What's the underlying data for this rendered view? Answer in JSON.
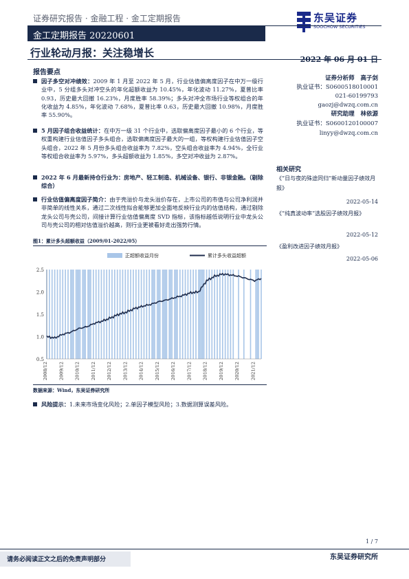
{
  "header": {
    "series": "证券研究报告 · 金融工程 · 金工定期报告",
    "banner": "金工定期报告 20220601",
    "logo_cn": "东吴证券",
    "logo_en": "SOOCHOW SECURITIES",
    "title": "行业轮动月报：关注稳增长",
    "date": "2022 年 06 月 01 日"
  },
  "summary": {
    "heading": "报告要点",
    "bullets": [
      {
        "lead": "因子多空对冲绩效：",
        "text": "2009 年 1 月至 2022 年 5 月，行业估值偏离度因子在中万一级行业中，5 分组多头对冲空头的年化超额收益为 10.45%，年化波动 11.27%，夏普比率 0.93，历史最大回撤 16.23%，月度胜率 58.39%；多头对冲全市场行业等权组合的年化收益为 4.85%，年化波动 7.68%，夏普比率 0.63，历史最大回撤 10.98%，月度胜率 55.90%。"
      },
      {
        "lead": "5 月因子组合收益统计：",
        "text": "在中万一级 31 个行业中，选取偏离度因子最小的 6 个行业，等权重构建行业估值因子多头组合，选取偏离度因子最大的一组，等权构建行业估值因子空头组合，2022 年 5 月份多头组合收益率为 7.82%，空头组合收益率为 4.94%，全行业等权组合收益率为 5.97%，多头超额收益为 1.85%，多空对冲收益为 2.87%。"
      },
      {
        "lead": "2022 年 6 月最新持仓行业为：",
        "text": "房地产、轻工制造、机械设备、银行、非银金融。（剔除综合）",
        "all_bold": true
      },
      {
        "lead": "行业估值偏离度因子简介：",
        "text": "由于壳溢价与龙头溢价存在，上市公司的市值与公司净利润并非简单的线性关系，通过二次线性拟合能够更加全面地反映行业内的估值结构，通过剔除龙头公司与壳公司，间接计算行业估值偏离度 SVD 指标，该指标越低说明行业中龙头公司与壳公司的相对估值溢价越高，则行业更被看好走出强势行情。"
      }
    ],
    "risk_lead": "风险提示：",
    "risk_text": "1.未来市场变化风险；2.单因子模型风险；3.数据测算误差风险。"
  },
  "chart_meta": {
    "caption": "图1：累计多头超额收益（2009/01-2022/05）",
    "source": "数据来源：Wind，东吴证券研究所"
  },
  "chart_data": {
    "type": "bar+line",
    "title": "图1：累计多头超额收益（2009/01-2022/05）",
    "legend": [
      "正超额收益月份",
      "累计多头收益超额"
    ],
    "legend_position": "top",
    "ylim": [
      0.5,
      2.5
    ],
    "yticks": [
      0.5,
      1.0,
      1.5,
      2.0,
      2.5
    ],
    "xtick_labels": [
      "2008/12",
      "2009/12",
      "2010/12",
      "2011/12",
      "2012/12",
      "2013/12",
      "2014/12",
      "2015/12",
      "2016/12",
      "2017/12",
      "2018/12",
      "2019/12",
      "2020/12",
      "2021/12"
    ],
    "bar_color": "#a9c6e8",
    "line_color": "#1f2d4d",
    "line_anchors": [
      [
        "2008/12",
        1.0
      ],
      [
        "2009/06",
        0.97
      ],
      [
        "2009/12",
        1.05
      ],
      [
        "2010/06",
        1.1
      ],
      [
        "2010/12",
        1.18
      ],
      [
        "2011/06",
        1.22
      ],
      [
        "2011/12",
        1.3
      ],
      [
        "2012/06",
        1.35
      ],
      [
        "2012/12",
        1.42
      ],
      [
        "2013/06",
        1.5
      ],
      [
        "2013/12",
        1.55
      ],
      [
        "2014/06",
        1.63
      ],
      [
        "2014/12",
        1.68
      ],
      [
        "2015/06",
        1.72
      ],
      [
        "2015/12",
        1.78
      ],
      [
        "2016/06",
        1.82
      ],
      [
        "2016/12",
        1.87
      ],
      [
        "2017/06",
        1.92
      ],
      [
        "2017/12",
        1.98
      ],
      [
        "2018/06",
        2.0
      ],
      [
        "2018/12",
        2.25
      ],
      [
        "2019/06",
        2.35
      ],
      [
        "2019/12",
        2.4
      ],
      [
        "2020/06",
        2.38
      ],
      [
        "2020/12",
        2.35
      ],
      [
        "2021/06",
        2.3
      ],
      [
        "2021/12",
        2.25
      ],
      [
        "2022/05",
        2.3
      ]
    ]
  },
  "sidebar": {
    "analyst_label": "证券分析师",
    "analyst_name": "高子剑",
    "analyst_license": "执业证书：S0600518010001",
    "analyst_phone": "021-60199793",
    "analyst_email": "gaozj@dwzq.com.cn",
    "assistant_label": "研究助理",
    "assistant_name": "林依源",
    "assistant_license": "执业证书：S0600120100007",
    "assistant_email": "linyy@dwzq.com.cn",
    "related_heading": "相关研究",
    "related": [
      {
        "title": "《“日与夜的殊途同归”新动量因子绩效月报》",
        "date": "2022-05-14"
      },
      {
        "title": "《“纯真波动率”选股因子绩效月报》",
        "date": "2022-05-12"
      },
      {
        "title": "《盈利改进因子绩效月报》",
        "date": "2022-05-06"
      }
    ]
  },
  "footer": {
    "page": "1 / 7",
    "disclaimer": "请务必阅读正文之后的免责声明部分",
    "institute": "东吴证券研究所"
  }
}
